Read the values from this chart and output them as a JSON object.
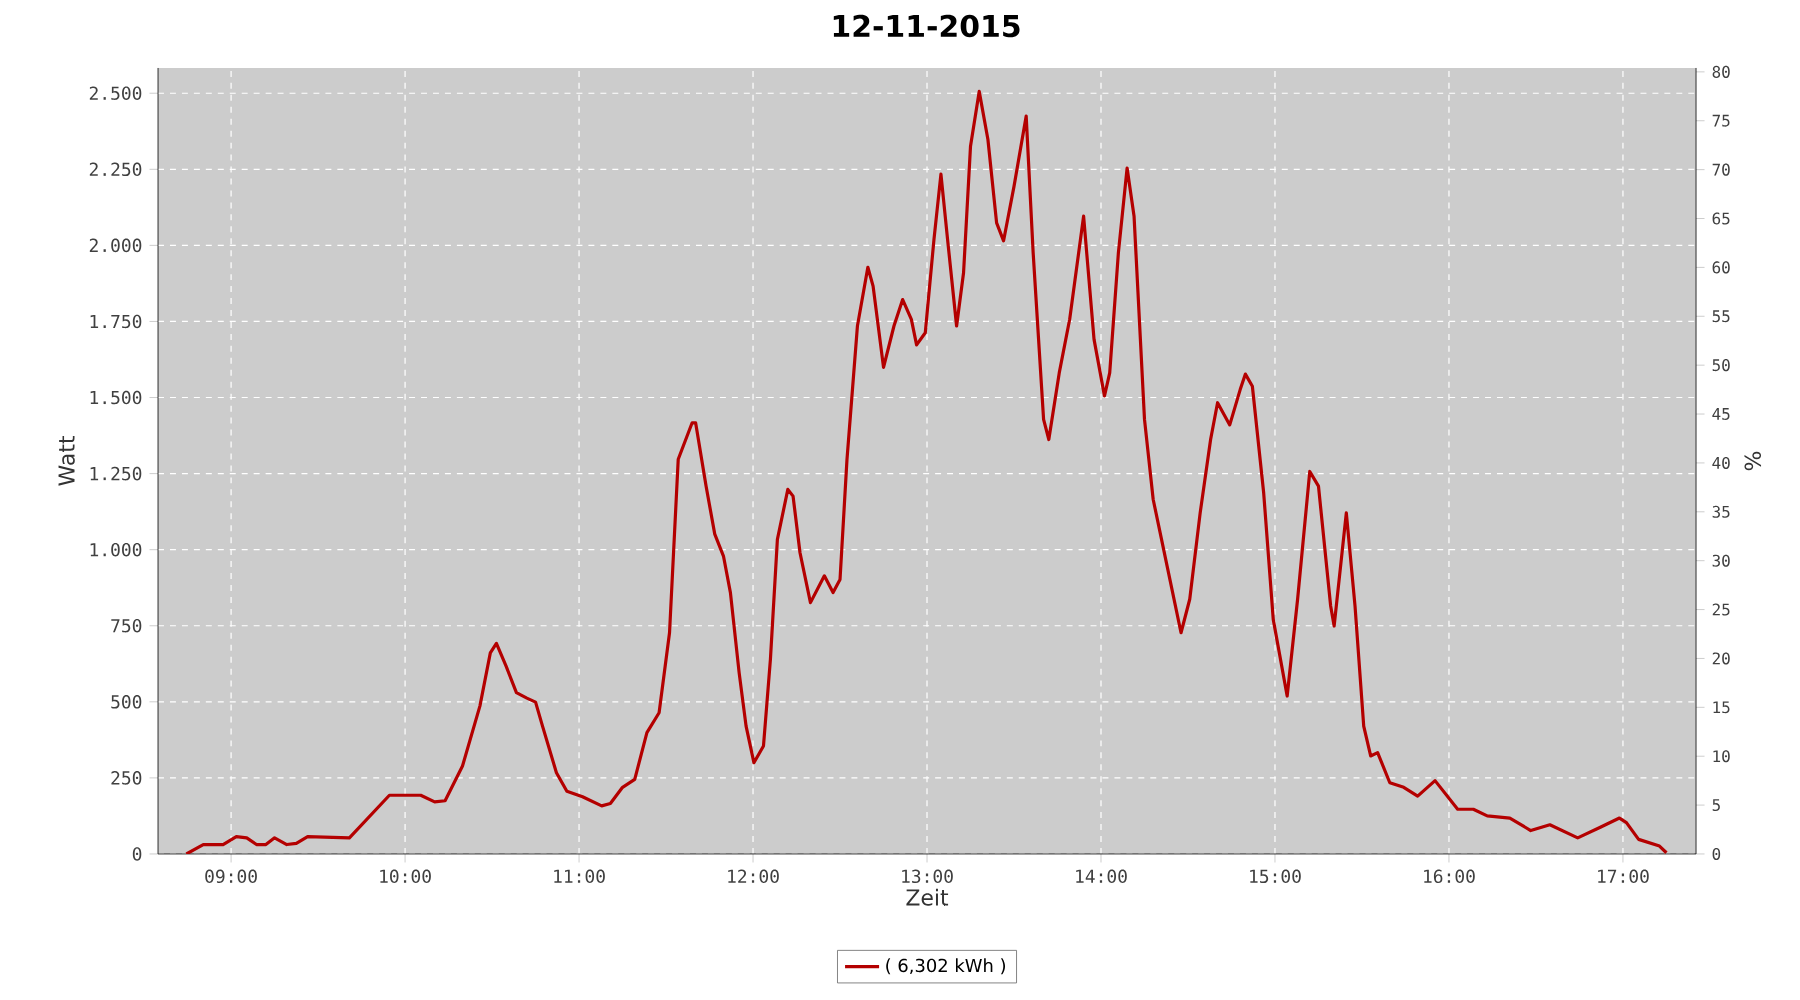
{
  "chart_data": {
    "type": "line",
    "title": "12-11-2015",
    "xlabel": "Zeit",
    "ylabel": "Watt",
    "y2label": "%",
    "x": [
      8.743,
      8.84,
      8.954,
      9.03,
      9.09,
      9.146,
      9.2,
      9.25,
      9.32,
      9.375,
      9.44,
      9.68,
      9.91,
      10.09,
      10.17,
      10.23,
      10.33,
      10.43,
      10.49,
      10.525,
      10.58,
      10.64,
      10.7,
      10.75,
      10.79,
      10.87,
      10.93,
      11.02,
      11.13,
      11.18,
      11.25,
      11.32,
      11.39,
      11.46,
      11.52,
      11.57,
      11.65,
      11.67,
      11.73,
      11.78,
      11.83,
      11.87,
      11.92,
      11.96,
      12.005,
      12.06,
      12.1,
      12.14,
      12.2,
      12.23,
      12.27,
      12.33,
      12.41,
      12.46,
      12.5,
      12.54,
      12.6,
      12.66,
      12.69,
      12.75,
      12.81,
      12.86,
      12.91,
      12.94,
      12.99,
      13.04,
      13.08,
      13.12,
      13.17,
      13.21,
      13.25,
      13.3,
      13.35,
      13.4,
      13.44,
      13.5,
      13.57,
      13.61,
      13.67,
      13.7,
      13.76,
      13.82,
      13.9,
      13.96,
      14.02,
      14.05,
      14.1,
      14.15,
      14.19,
      14.25,
      14.3,
      14.38,
      14.46,
      14.51,
      14.57,
      14.63,
      14.67,
      14.74,
      14.8,
      14.83,
      14.87,
      14.935,
      14.99,
      15.07,
      15.13,
      15.2,
      15.25,
      15.32,
      15.34,
      15.41,
      15.46,
      15.51,
      15.55,
      15.59,
      15.66,
      15.74,
      15.82,
      15.92,
      16.05,
      16.14,
      16.22,
      16.35,
      16.47,
      16.58,
      16.74,
      16.87,
      16.98,
      17.02,
      17.09,
      17.21,
      17.25
    ],
    "series": [
      {
        "name": "( 6,302 kWh )",
        "color": "#b40000",
        "values": [
          0,
          31,
          31,
          57,
          53,
          31,
          31,
          53,
          31,
          35,
          57,
          53,
          193,
          193,
          171,
          175,
          289,
          486,
          661,
          692,
          618,
          530,
          512,
          499,
          420,
          267,
          206,
          188,
          158,
          166,
          219,
          245,
          399,
          464,
          727,
          1297,
          1417,
          1417,
          1209,
          1051,
          979,
          859,
          596,
          420,
          300,
          355,
          640,
          1034,
          1198,
          1176,
          990,
          826,
          914,
          859,
          902,
          1297,
          1735,
          1928,
          1866,
          1599,
          1735,
          1822,
          1757,
          1673,
          1713,
          2020,
          2234,
          2009,
          1735,
          1910,
          2326,
          2506,
          2348,
          2074,
          2015,
          2194,
          2425,
          1976,
          1428,
          1362,
          1581,
          1757,
          2096,
          1691,
          1505,
          1581,
          1976,
          2254,
          2096,
          1428,
          1165,
          946,
          727,
          837,
          1121,
          1362,
          1483,
          1410,
          1526,
          1577,
          1537,
          1187,
          771,
          519,
          837,
          1257,
          1209,
          815,
          749,
          1121,
          815,
          420,
          322,
          333,
          234,
          219,
          190,
          241,
          147,
          147,
          125,
          118,
          77,
          96,
          53,
          88,
          118,
          103,
          48,
          26,
          4
        ]
      }
    ],
    "xlim": [
      8.58,
      17.42
    ],
    "ylim": [
      0,
      2583
    ],
    "y2lim": [
      0,
      80.4
    ],
    "xticks": [
      {
        "value": 9,
        "label": "09:00"
      },
      {
        "value": 10,
        "label": "10:00"
      },
      {
        "value": 11,
        "label": "11:00"
      },
      {
        "value": 12,
        "label": "12:00"
      },
      {
        "value": 13,
        "label": "13:00"
      },
      {
        "value": 14,
        "label": "14:00"
      },
      {
        "value": 15,
        "label": "15:00"
      },
      {
        "value": 16,
        "label": "16:00"
      },
      {
        "value": 17,
        "label": "17:00"
      }
    ],
    "yticks": [
      0,
      250,
      500,
      750,
      {
        "value": 1000,
        "label": "1.000"
      },
      {
        "value": 1250,
        "label": "1.250"
      },
      {
        "value": 1500,
        "label": "1.500"
      },
      {
        "value": 1750,
        "label": "1.750"
      },
      {
        "value": 2000,
        "label": "2.000"
      },
      {
        "value": 2250,
        "label": "2.250"
      },
      {
        "value": 2500,
        "label": "2.500"
      }
    ],
    "y2ticks": [
      0,
      5,
      10,
      15,
      20,
      25,
      30,
      35,
      40,
      45,
      50,
      55,
      60,
      65,
      70,
      75,
      80
    ],
    "grid": true,
    "legend": "bottom",
    "marker": "none",
    "line_style": "solid"
  }
}
